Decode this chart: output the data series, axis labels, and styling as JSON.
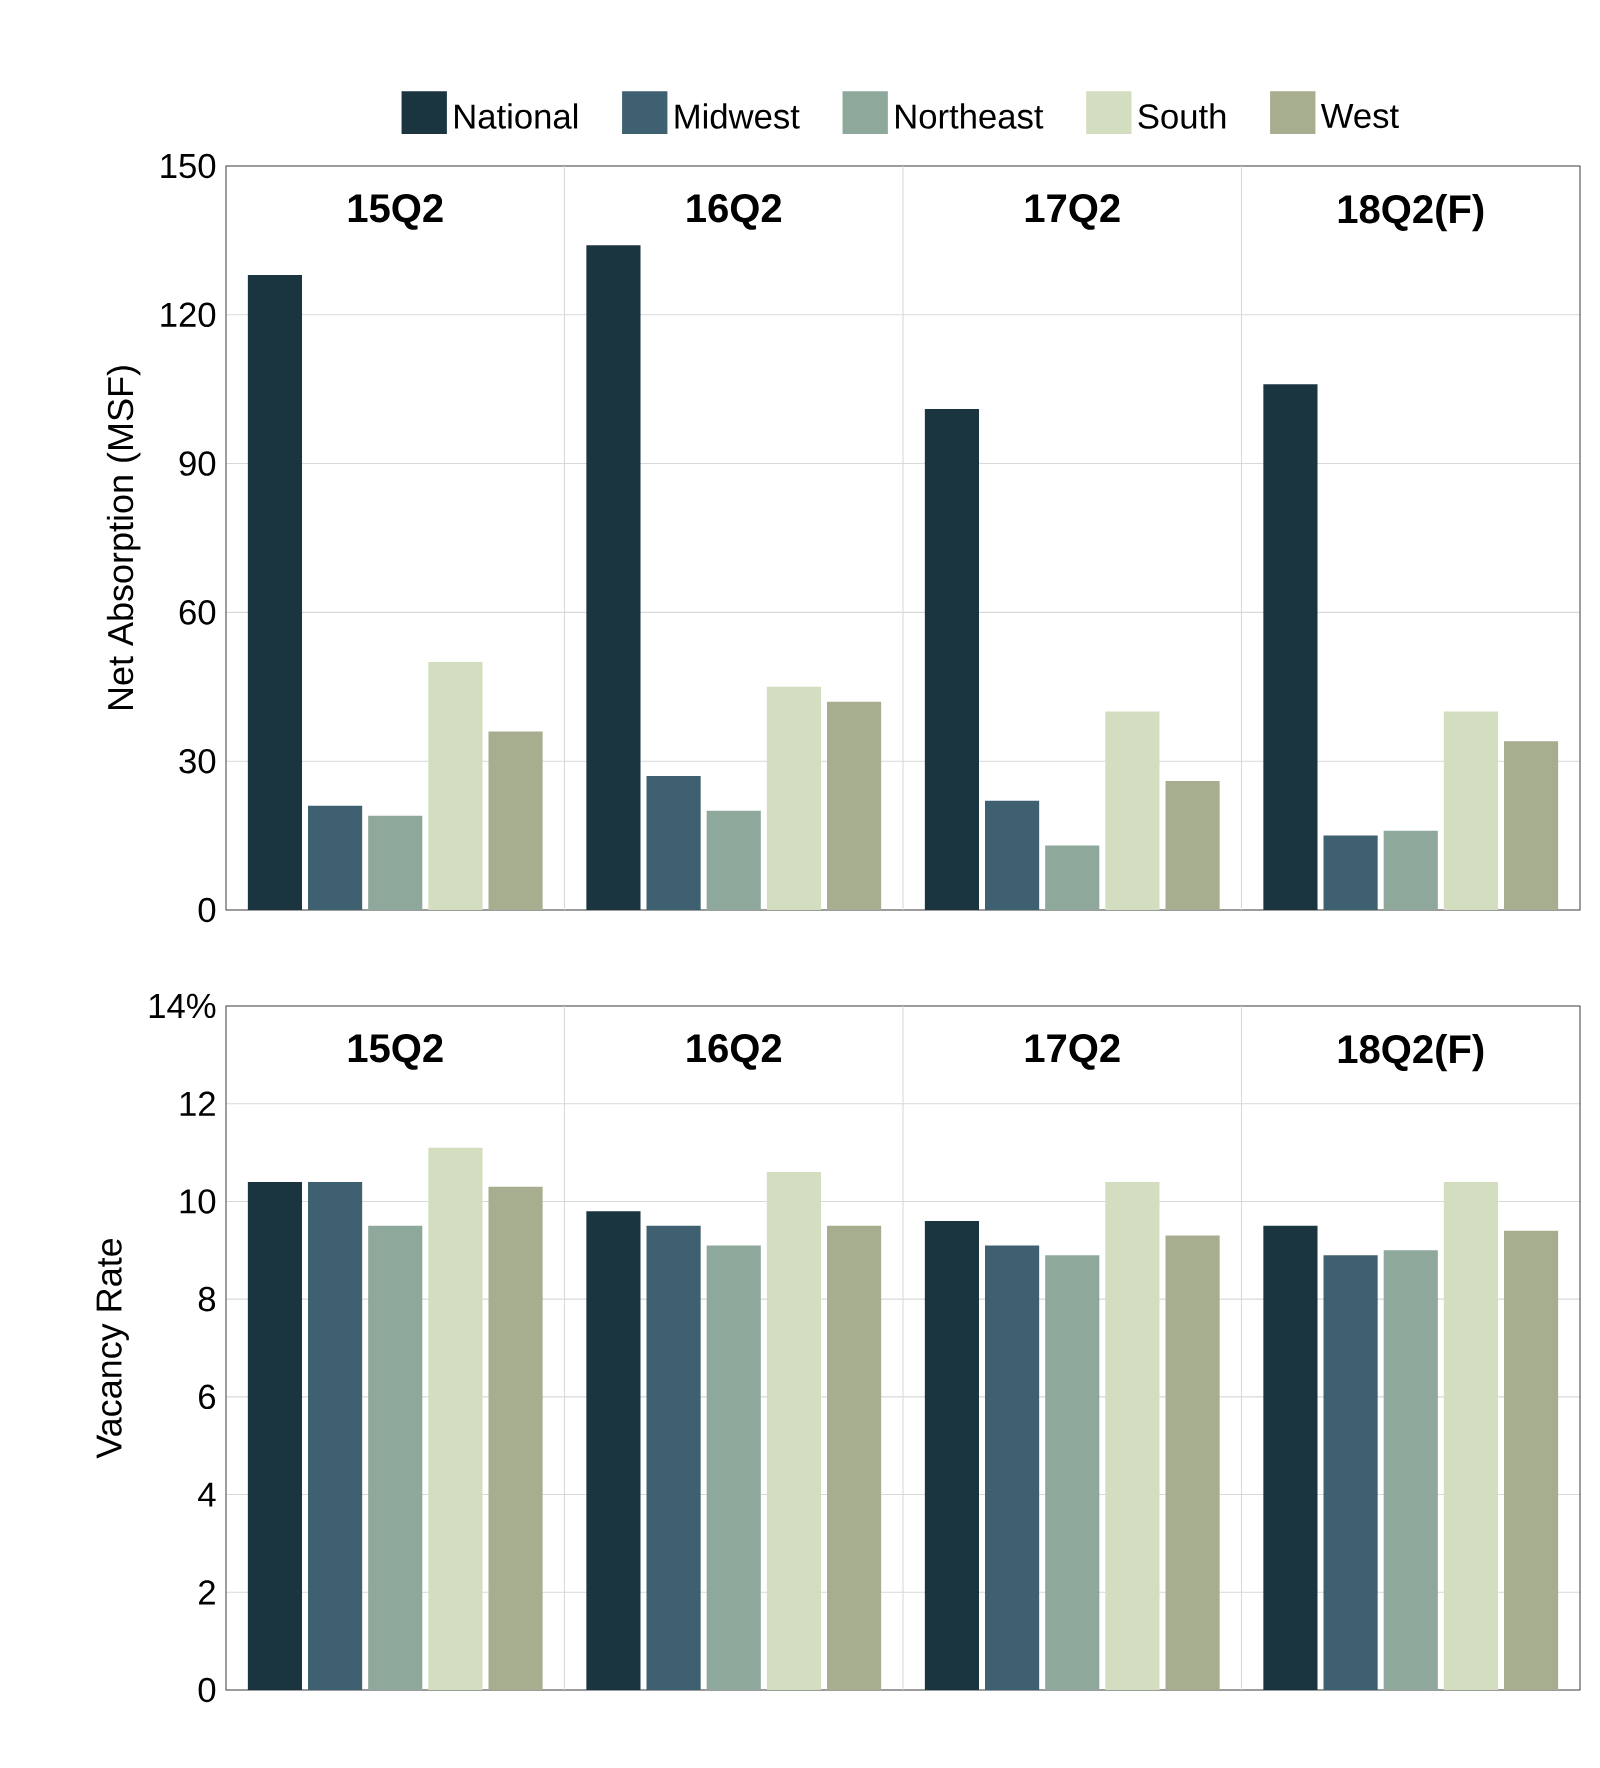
{
  "chart_data": [
    {
      "type": "bar",
      "ylabel": "Net Absorption (MSF)",
      "categories": [
        "15Q2",
        "16Q2",
        "17Q2",
        "18Q2(F)"
      ],
      "series": [
        {
          "name": "National",
          "color": "#1b3540",
          "values": [
            128,
            134,
            101,
            106
          ]
        },
        {
          "name": "Midwest",
          "color": "#3f6070",
          "values": [
            21,
            27,
            22,
            15
          ]
        },
        {
          "name": "Northeast",
          "color": "#8fa89c",
          "values": [
            19,
            20,
            13,
            16
          ]
        },
        {
          "name": "South",
          "color": "#d3ddbf",
          "values": [
            50,
            45,
            40,
            40
          ]
        },
        {
          "name": "West",
          "color": "#a7ad8f",
          "values": [
            36,
            42,
            26,
            34
          ]
        }
      ],
      "ylim": [
        0,
        150
      ],
      "yticks": [
        0,
        30,
        60,
        90,
        120,
        150
      ],
      "grid": true,
      "legend": "top"
    },
    {
      "type": "bar",
      "ylabel": "Vacancy Rate",
      "categories": [
        "15Q2",
        "16Q2",
        "17Q2",
        "18Q2(F)"
      ],
      "series": [
        {
          "color": "#1b3540",
          "values": [
            10.4,
            9.8,
            9.6,
            9.5
          ]
        },
        {
          "color": "#3f6070",
          "values": [
            10.4,
            9.5,
            9.1,
            8.9
          ]
        },
        {
          "color": "#8fa89c",
          "values": [
            9.5,
            9.1,
            8.9,
            9.0
          ]
        },
        {
          "color": "#d3ddbf",
          "values": [
            11.1,
            10.6,
            10.4,
            10.4
          ]
        },
        {
          "color": "#a7ad8f",
          "values": [
            10.3,
            9.5,
            9.3,
            9.4
          ]
        }
      ],
      "ylim": [
        0,
        14
      ],
      "yticks": [
        0,
        2,
        4,
        6,
        8,
        10,
        12,
        {
          "value": 14,
          "label": "14%"
        }
      ],
      "grid": true
    }
  ]
}
